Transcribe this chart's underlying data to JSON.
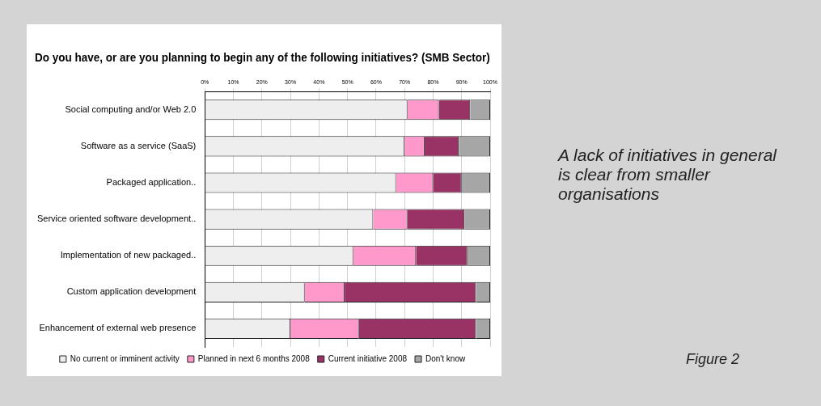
{
  "chart_data": {
    "type": "bar",
    "orientation": "horizontal",
    "stacked": true,
    "title": "Do you have, or are you planning to begin any of the following initiatives? (SMB Sector)",
    "categories": [
      "Social computing and/or Web 2.0",
      "Software as a service (SaaS)",
      "Packaged application..",
      "Service oriented software development..",
      "Implementation of new packaged..",
      "Custom application development",
      "Enhancement of external web presence"
    ],
    "series": [
      {
        "name": "No current or imminent activity",
        "color": "#eeeeee",
        "values": [
          71,
          70,
          67,
          59,
          52,
          35,
          30
        ]
      },
      {
        "name": "Planned in next 6 months 2008",
        "color": "#ff99cc",
        "values": [
          11,
          7,
          13,
          12,
          22,
          14,
          24
        ]
      },
      {
        "name": "Current initiative 2008",
        "color": "#993366",
        "values": [
          11,
          12,
          10,
          20,
          18,
          46,
          41
        ]
      },
      {
        "name": "Don't know",
        "color": "#a6a6a6",
        "values": [
          7,
          11,
          10,
          9,
          8,
          5,
          5
        ]
      }
    ],
    "xlim": [
      0,
      100
    ],
    "xticks": [
      {
        "value": 0,
        "label": "0%"
      },
      {
        "value": 10,
        "label": "10%"
      },
      {
        "value": 20,
        "label": "20%"
      },
      {
        "value": 30,
        "label": "30%"
      },
      {
        "value": 40,
        "label": "40%"
      },
      {
        "value": 50,
        "label": "50%"
      },
      {
        "value": 60,
        "label": "60%"
      },
      {
        "value": 70,
        "label": "70%"
      },
      {
        "value": 80,
        "label": "80%"
      },
      {
        "value": 90,
        "label": "90%"
      },
      {
        "value": 100,
        "label": "100%"
      }
    ],
    "grid": "x",
    "legend": "bottom",
    "annotations": [
      "A lack of initiatives in general is clear from smaller organisations",
      "Figure 2"
    ]
  }
}
